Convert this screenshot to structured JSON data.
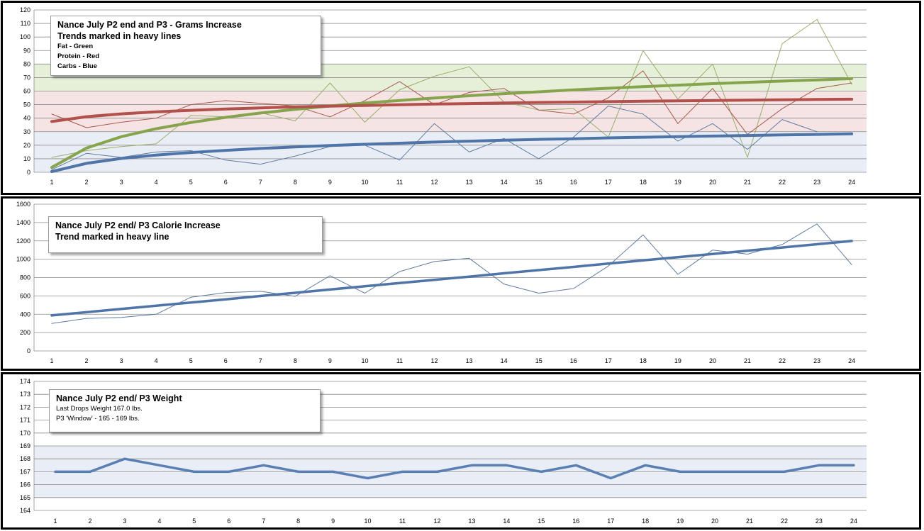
{
  "chart_data": [
    {
      "type": "line",
      "title": "Nance July P2 end and P3  -  Grams Increase",
      "subtitle": "Trends marked in heavy lines",
      "legend_lines": [
        "Fat - Green",
        "Protein - Red",
        "Carbs - Blue"
      ],
      "legend_placement": "top-left",
      "categories": [
        "1",
        "2",
        "3",
        "4",
        "5",
        "6",
        "7",
        "8",
        "9",
        "10",
        "11",
        "12",
        "13",
        "14",
        "15",
        "16",
        "17",
        "18",
        "19",
        "20",
        "21",
        "22",
        "23",
        "24"
      ],
      "ylim": [
        0,
        120
      ],
      "yticks": [
        0,
        10,
        20,
        30,
        40,
        50,
        60,
        70,
        80,
        90,
        100,
        110,
        120
      ],
      "grid": true,
      "bands": [
        {
          "from": 0,
          "to": 30,
          "color": "#e9eef6"
        },
        {
          "from": 30,
          "to": 60,
          "color": "#f5e4e3"
        },
        {
          "from": 60,
          "to": 80,
          "color": "#e6f0d9"
        }
      ],
      "series": [
        {
          "name": "Fat",
          "color": "#9bae69",
          "kind": "data",
          "values": [
            11,
            16,
            19,
            21,
            42,
            41,
            44,
            38,
            66,
            37,
            61,
            71,
            78,
            52,
            46,
            47,
            26,
            90,
            54,
            80,
            11,
            95,
            113,
            65
          ]
        },
        {
          "name": "Protein",
          "color": "#a9574f",
          "kind": "data",
          "values": [
            43,
            33,
            37,
            40,
            50,
            53,
            51,
            49,
            41,
            53,
            67,
            50,
            59,
            62,
            46,
            43,
            55,
            75,
            36,
            62,
            28,
            47,
            62,
            66
          ]
        },
        {
          "name": "Carbs",
          "color": "#5f7ba1",
          "kind": "data",
          "values": [
            2,
            14,
            11,
            15,
            16,
            9,
            6,
            12,
            19,
            20,
            9,
            36,
            15,
            25,
            10,
            26,
            49,
            43,
            23,
            36,
            17,
            39,
            30,
            null
          ]
        },
        {
          "name": "Fat",
          "color": "#86a44b",
          "kind": "trend",
          "values": [
            3.6,
            17.9,
            26.3,
            32.2,
            36.8,
            40.6,
            43.8,
            46.5,
            49.0,
            51.2,
            53.1,
            54.9,
            56.6,
            58.1,
            59.5,
            60.9,
            62.1,
            63.3,
            64.4,
            65.5,
            66.5,
            67.4,
            68.3,
            69.2
          ]
        },
        {
          "name": "Protein",
          "color": "#b2504b",
          "kind": "trend",
          "values": [
            37.5,
            41.1,
            43.2,
            44.7,
            45.8,
            46.8,
            47.6,
            48.3,
            48.9,
            49.4,
            49.9,
            50.4,
            50.8,
            51.2,
            51.6,
            51.9,
            52.2,
            52.5,
            52.8,
            53.1,
            53.3,
            53.6,
            53.8,
            54.0
          ]
        },
        {
          "name": "Carbs",
          "color": "#4f74a8",
          "kind": "trend",
          "values": [
            0.5,
            6.6,
            10.2,
            12.7,
            14.6,
            16.2,
            17.6,
            18.7,
            19.8,
            20.7,
            21.5,
            22.3,
            23.0,
            23.7,
            24.3,
            24.8,
            25.4,
            25.9,
            26.3,
            26.8,
            27.2,
            27.6,
            28.0,
            28.4
          ]
        }
      ]
    },
    {
      "type": "line",
      "title": "Nance July P2 end/ P3 Calorie Increase",
      "subtitle": "Trend marked in heavy line",
      "categories": [
        "1",
        "2",
        "3",
        "4",
        "5",
        "6",
        "7",
        "8",
        "9",
        "10",
        "11",
        "12",
        "13",
        "14",
        "15",
        "16",
        "17",
        "18",
        "19",
        "20",
        "21",
        "22",
        "23",
        "24"
      ],
      "ylim": [
        0,
        1600
      ],
      "yticks": [
        0,
        200,
        400,
        600,
        800,
        1000,
        1200,
        1400,
        1600
      ],
      "grid": true,
      "series": [
        {
          "name": "Calories",
          "color": "#5f7ba1",
          "kind": "data",
          "values": [
            300,
            355,
            365,
            400,
            585,
            635,
            650,
            595,
            820,
            630,
            865,
            975,
            1010,
            730,
            630,
            680,
            925,
            1265,
            835,
            1100,
            1055,
            1160,
            1385,
            940
          ]
        },
        {
          "name": "Calories",
          "color": "#4f74a8",
          "kind": "trend",
          "values": [
            387,
            422,
            458,
            493,
            528,
            563,
            599,
            634,
            669,
            705,
            740,
            775,
            810,
            846,
            881,
            916,
            952,
            987,
            1022,
            1057,
            1093,
            1128,
            1163,
            1199
          ]
        }
      ]
    },
    {
      "type": "line",
      "title": "Nance July P2 end/ P3 Weight",
      "subtitle_lines": [
        "Last Drops Weight 167.0 lbs.",
        "P3 'Window' - 165 - 169 lbs."
      ],
      "categories": [
        "1",
        "2",
        "3",
        "4",
        "5",
        "6",
        "7",
        "8",
        "9",
        "10",
        "11",
        "12",
        "13",
        "14",
        "15",
        "16",
        "17",
        "18",
        "19",
        "20",
        "21",
        "22",
        "23",
        "24"
      ],
      "ylim": [
        164,
        174
      ],
      "yticks": [
        164,
        165,
        166,
        167,
        168,
        169,
        170,
        171,
        172,
        173,
        174
      ],
      "grid": true,
      "bands": [
        {
          "from": 165,
          "to": 169,
          "color": "#e9eef6"
        }
      ],
      "series": [
        {
          "name": "Weight",
          "color": "#5a7fb2",
          "kind": "trend",
          "values": [
            167.0,
            167.0,
            168.0,
            167.5,
            167.0,
            167.0,
            167.5,
            167.0,
            167.0,
            166.5,
            167.0,
            167.0,
            167.5,
            167.5,
            167.0,
            167.5,
            166.5,
            167.5,
            167.0,
            167.0,
            167.0,
            167.0,
            167.5,
            167.5
          ]
        }
      ]
    }
  ]
}
